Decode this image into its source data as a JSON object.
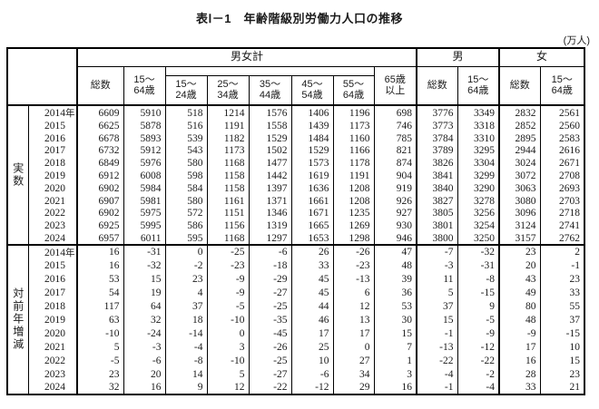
{
  "page": {
    "title": "表Ⅰ－1　年齢階級別労働力人口の推移",
    "unit_label": "(万人)"
  },
  "table": {
    "header": {
      "group_total": "男女計",
      "group_male": "男",
      "group_female": "女",
      "col_total": "総数",
      "col_15_64": "15～\n64歳",
      "col_15_24": "15～\n24歳",
      "col_25_34": "25～\n34歳",
      "col_35_44": "35～\n44歳",
      "col_45_54": "45～\n54歳",
      "col_55_64": "55～\n64歳",
      "col_65_over": "65歳\n以上"
    },
    "column_keys": [
      "mf-total",
      "mf-15-64",
      "mf-15-24",
      "mf-25-34",
      "mf-35-44",
      "mf-45-54",
      "mf-55-64",
      "mf-65-over",
      "male-total",
      "male-15-64",
      "female-total",
      "female-15-64"
    ],
    "blocks": [
      {
        "label": "実数",
        "rows": [
          {
            "year": "2014年",
            "values": [
              6609,
              5910,
              518,
              1214,
              1576,
              1406,
              1196,
              698,
              3776,
              3349,
              2832,
              2561
            ]
          },
          {
            "year": "2015",
            "values": [
              6625,
              5878,
              516,
              1191,
              1558,
              1439,
              1173,
              746,
              3773,
              3318,
              2852,
              2560
            ]
          },
          {
            "year": "2016",
            "values": [
              6678,
              5893,
              539,
              1182,
              1529,
              1484,
              1160,
              785,
              3784,
              3310,
              2895,
              2583
            ]
          },
          {
            "year": "2017",
            "values": [
              6732,
              5912,
              543,
              1173,
              1502,
              1529,
              1166,
              821,
              3789,
              3295,
              2944,
              2616
            ]
          },
          {
            "year": "2018",
            "values": [
              6849,
              5976,
              580,
              1168,
              1477,
              1573,
              1178,
              874,
              3826,
              3304,
              3024,
              2671
            ]
          },
          {
            "year": "2019",
            "values": [
              6912,
              6008,
              598,
              1158,
              1442,
              1619,
              1191,
              904,
              3841,
              3299,
              3072,
              2708
            ]
          },
          {
            "year": "2020",
            "values": [
              6902,
              5984,
              584,
              1158,
              1397,
              1636,
              1208,
              919,
              3840,
              3290,
              3063,
              2693
            ]
          },
          {
            "year": "2021",
            "values": [
              6907,
              5981,
              580,
              1161,
              1371,
              1661,
              1208,
              926,
              3827,
              3278,
              3080,
              2703
            ]
          },
          {
            "year": "2022",
            "values": [
              6902,
              5975,
              572,
              1151,
              1346,
              1671,
              1235,
              927,
              3805,
              3256,
              3096,
              2718
            ]
          },
          {
            "year": "2023",
            "values": [
              6925,
              5995,
              586,
              1156,
              1319,
              1665,
              1269,
              930,
              3801,
              3254,
              3124,
              2741
            ]
          },
          {
            "year": "2024",
            "values": [
              6957,
              6011,
              595,
              1168,
              1297,
              1653,
              1298,
              946,
              3800,
              3250,
              3157,
              2762
            ]
          }
        ]
      },
      {
        "label": "対前年増減",
        "rows": [
          {
            "year": "2014年",
            "values": [
              16,
              -31,
              0,
              -25,
              -6,
              26,
              -26,
              47,
              -7,
              -32,
              23,
              2
            ]
          },
          {
            "year": "2015",
            "values": [
              16,
              -32,
              -2,
              -23,
              -18,
              33,
              -23,
              48,
              -3,
              -31,
              20,
              -1
            ]
          },
          {
            "year": "2016",
            "values": [
              53,
              15,
              23,
              -9,
              -29,
              45,
              -13,
              39,
              11,
              -8,
              43,
              23
            ]
          },
          {
            "year": "2017",
            "values": [
              54,
              19,
              4,
              -9,
              -27,
              45,
              6,
              36,
              5,
              -15,
              49,
              33
            ]
          },
          {
            "year": "2018",
            "values": [
              117,
              64,
              37,
              -5,
              -25,
              44,
              12,
              53,
              37,
              9,
              80,
              55
            ]
          },
          {
            "year": "2019",
            "values": [
              63,
              32,
              18,
              -10,
              -35,
              46,
              13,
              30,
              15,
              -5,
              48,
              37
            ]
          },
          {
            "year": "2020",
            "values": [
              -10,
              -24,
              -14,
              0,
              -45,
              17,
              17,
              15,
              -1,
              -9,
              -9,
              -15
            ]
          },
          {
            "year": "2021",
            "values": [
              5,
              -3,
              -4,
              3,
              -26,
              25,
              0,
              7,
              -13,
              -12,
              17,
              10
            ]
          },
          {
            "year": "2022",
            "values": [
              -5,
              -6,
              -8,
              -10,
              -25,
              10,
              27,
              1,
              -22,
              -22,
              16,
              15
            ]
          },
          {
            "year": "2023",
            "values": [
              23,
              20,
              14,
              5,
              -27,
              -6,
              34,
              3,
              -4,
              -2,
              28,
              23
            ]
          },
          {
            "year": "2024",
            "values": [
              32,
              16,
              9,
              12,
              -22,
              -12,
              29,
              16,
              -1,
              -4,
              33,
              21
            ]
          }
        ]
      }
    ]
  }
}
